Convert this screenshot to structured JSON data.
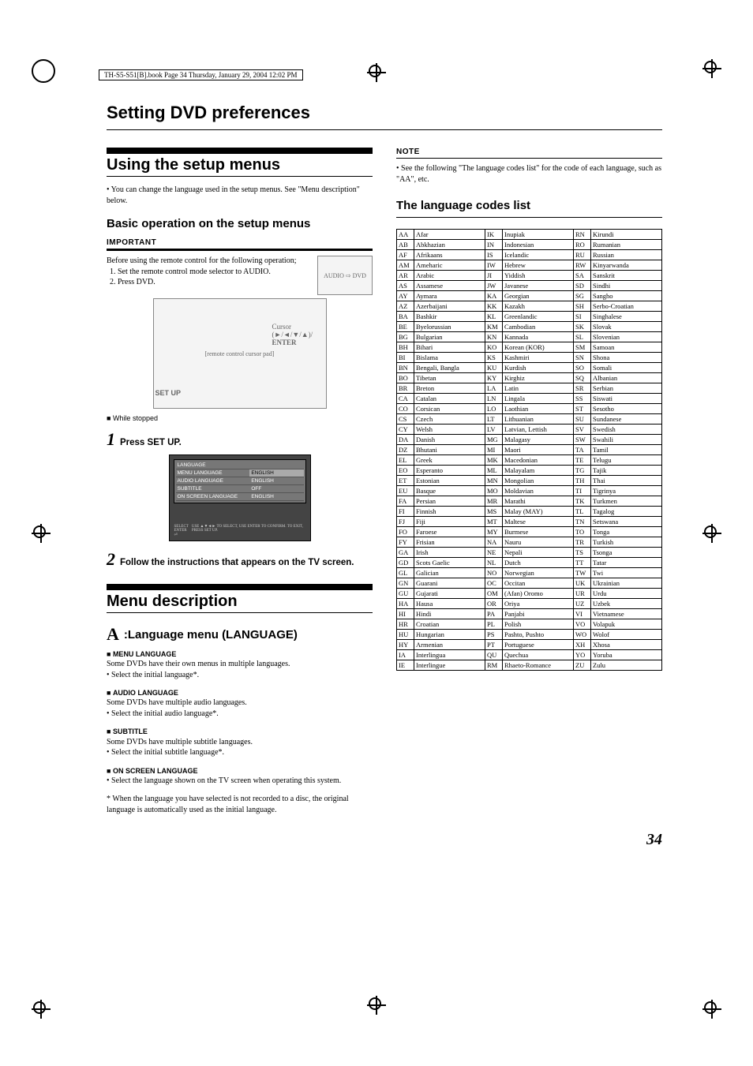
{
  "meta": {
    "header": "TH-S5-S51[B].book  Page 34  Thursday, January 29, 2004  12:02 PM"
  },
  "title": "Setting DVD preferences",
  "sec1": {
    "heading": "Using the setup menus",
    "bullet": "You can change the language used in the setup menus. See \"Menu description\" below.",
    "sub": "Basic operation on the setup menus",
    "important": "IMPORTANT",
    "intro": "Before using the remote control for the following operation;",
    "steps_pre": [
      "Set the remote control mode selector to AUDIO.",
      "Press DVD."
    ],
    "cursor_label": "Cursor\n(►/◄/▼/▲)/\nENTER",
    "setup_label": "SET UP",
    "while_stopped": "While stopped",
    "step1": "Press SET UP.",
    "step2": "Follow the instructions that appears on the TV screen.",
    "tv": {
      "title": "LANGUAGE",
      "rows": [
        [
          "MENU LANGUAGE",
          "ENGLISH"
        ],
        [
          "AUDIO LANGUAGE",
          "ENGLISH"
        ],
        [
          "SUBTITLE",
          "OFF"
        ],
        [
          "ON SCREEN LANGUAGE",
          "ENGLISH"
        ]
      ],
      "foot": "USE ▲▼◄► TO SELECT, USE ENTER TO CONFIRM. TO EXIT, PRESS SET UP."
    }
  },
  "sec2": {
    "heading": "Menu description",
    "lang_heading": ":Language menu (LANGUAGE)",
    "menu_lang": {
      "h": "MENU LANGUAGE",
      "p": "Some DVDs have their own menus in multiple languages.",
      "b": "Select the initial language*."
    },
    "audio_lang": {
      "h": "AUDIO LANGUAGE",
      "p": "Some DVDs have multiple audio languages.",
      "b": "Select the initial audio language*."
    },
    "subtitle": {
      "h": "SUBTITLE",
      "p": "Some DVDs have multiple subtitle languages.",
      "b": "Select the initial subtitle language*."
    },
    "onscreen": {
      "h": "ON SCREEN LANGUAGE",
      "b": "Select the language shown on the TV screen when operating this system."
    },
    "footnote": "* When the language you have selected is not recorded to a disc, the original language is automatically used as the initial language."
  },
  "note": {
    "h": "NOTE",
    "p": "See the following \"The language codes list\" for the code of each language, such as \"AA\", etc."
  },
  "lang_list": {
    "heading": "The language codes list",
    "cols": [
      [
        [
          "AA",
          "Afar"
        ],
        [
          "AB",
          "Abkhazian"
        ],
        [
          "AF",
          "Afrikaans"
        ],
        [
          "AM",
          "Ameharic"
        ],
        [
          "AR",
          "Arabic"
        ],
        [
          "AS",
          "Assamese"
        ],
        [
          "AY",
          "Aymara"
        ],
        [
          "AZ",
          "Azerbaijani"
        ],
        [
          "BA",
          "Bashkir"
        ],
        [
          "BE",
          "Byelorussian"
        ],
        [
          "BG",
          "Bulgarian"
        ],
        [
          "BH",
          "Bihari"
        ],
        [
          "BI",
          "Bislama"
        ],
        [
          "BN",
          "Bengali, Bangla"
        ],
        [
          "BO",
          "Tibetan"
        ],
        [
          "BR",
          "Breton"
        ],
        [
          "CA",
          "Catalan"
        ],
        [
          "CO",
          "Corsican"
        ],
        [
          "CS",
          "Czech"
        ],
        [
          "CY",
          "Welsh"
        ],
        [
          "DA",
          "Danish"
        ],
        [
          "DZ",
          "Bhutani"
        ],
        [
          "EL",
          "Greek"
        ],
        [
          "EO",
          "Esperanto"
        ],
        [
          "ET",
          "Estonian"
        ],
        [
          "EU",
          "Basque"
        ],
        [
          "FA",
          "Persian"
        ],
        [
          "FI",
          "Finnish"
        ],
        [
          "FJ",
          "Fiji"
        ],
        [
          "FO",
          "Faroese"
        ],
        [
          "FY",
          "Frisian"
        ],
        [
          "GA",
          "Irish"
        ],
        [
          "GD",
          "Scots Gaelic"
        ],
        [
          "GL",
          "Galician"
        ],
        [
          "GN",
          "Guarani"
        ],
        [
          "GU",
          "Gujarati"
        ],
        [
          "HA",
          "Hausa"
        ],
        [
          "HI",
          "Hindi"
        ],
        [
          "HR",
          "Croatian"
        ],
        [
          "HU",
          "Hungarian"
        ],
        [
          "HY",
          "Armenian"
        ],
        [
          "IA",
          "Interlingua"
        ],
        [
          "IE",
          "Interlingue"
        ]
      ],
      [
        [
          "IK",
          "Inupiak"
        ],
        [
          "IN",
          "Indonesian"
        ],
        [
          "IS",
          "Icelandic"
        ],
        [
          "IW",
          "Hebrew"
        ],
        [
          "JI",
          "Yiddish"
        ],
        [
          "JW",
          "Javanese"
        ],
        [
          "KA",
          "Georgian"
        ],
        [
          "KK",
          "Kazakh"
        ],
        [
          "KL",
          "Greenlandic"
        ],
        [
          "KM",
          "Cambodian"
        ],
        [
          "KN",
          "Kannada"
        ],
        [
          "KO",
          "Korean (KOR)"
        ],
        [
          "KS",
          "Kashmiri"
        ],
        [
          "KU",
          "Kurdish"
        ],
        [
          "KY",
          "Kirghiz"
        ],
        [
          "LA",
          "Latin"
        ],
        [
          "LN",
          "Lingala"
        ],
        [
          "LO",
          "Laothian"
        ],
        [
          "LT",
          "Lithuanian"
        ],
        [
          "LV",
          "Latvian, Lettish"
        ],
        [
          "MG",
          "Malagasy"
        ],
        [
          "MI",
          "Maori"
        ],
        [
          "MK",
          "Macedonian"
        ],
        [
          "ML",
          "Malayalam"
        ],
        [
          "MN",
          "Mongolian"
        ],
        [
          "MO",
          "Moldavian"
        ],
        [
          "MR",
          "Marathi"
        ],
        [
          "MS",
          "Malay (MAY)"
        ],
        [
          "MT",
          "Maltese"
        ],
        [
          "MY",
          "Burmese"
        ],
        [
          "NA",
          "Nauru"
        ],
        [
          "NE",
          "Nepali"
        ],
        [
          "NL",
          "Dutch"
        ],
        [
          "NO",
          "Norwegian"
        ],
        [
          "OC",
          "Occitan"
        ],
        [
          "OM",
          "(Afan) Oromo"
        ],
        [
          "OR",
          "Oriya"
        ],
        [
          "PA",
          "Panjabi"
        ],
        [
          "PL",
          "Polish"
        ],
        [
          "PS",
          "Pashto, Pushto"
        ],
        [
          "PT",
          "Portuguese"
        ],
        [
          "QU",
          "Quechua"
        ],
        [
          "RM",
          "Rhaeto-Romance"
        ]
      ],
      [
        [
          "RN",
          "Kirundi"
        ],
        [
          "RO",
          "Rumanian"
        ],
        [
          "RU",
          "Russian"
        ],
        [
          "RW",
          "Kinyarwanda"
        ],
        [
          "SA",
          "Sanskrit"
        ],
        [
          "SD",
          "Sindhi"
        ],
        [
          "SG",
          "Sangho"
        ],
        [
          "SH",
          "Serbo-Croatian"
        ],
        [
          "SI",
          "Singhalese"
        ],
        [
          "SK",
          "Slovak"
        ],
        [
          "SL",
          "Slovenian"
        ],
        [
          "SM",
          "Samoan"
        ],
        [
          "SN",
          "Shona"
        ],
        [
          "SO",
          "Somali"
        ],
        [
          "SQ",
          "Albanian"
        ],
        [
          "SR",
          "Serbian"
        ],
        [
          "SS",
          "Siswati"
        ],
        [
          "ST",
          "Sesotho"
        ],
        [
          "SU",
          "Sundanese"
        ],
        [
          "SV",
          "Swedish"
        ],
        [
          "SW",
          "Swahili"
        ],
        [
          "TA",
          "Tamil"
        ],
        [
          "TE",
          "Telugu"
        ],
        [
          "TG",
          "Tajik"
        ],
        [
          "TH",
          "Thai"
        ],
        [
          "TI",
          "Tigrinya"
        ],
        [
          "TK",
          "Turkmen"
        ],
        [
          "TL",
          "Tagalog"
        ],
        [
          "TN",
          "Setswana"
        ],
        [
          "TO",
          "Tonga"
        ],
        [
          "TR",
          "Turkish"
        ],
        [
          "TS",
          "Tsonga"
        ],
        [
          "TT",
          "Tatar"
        ],
        [
          "TW",
          "Twi"
        ],
        [
          "UK",
          "Ukrainian"
        ],
        [
          "UR",
          "Urdu"
        ],
        [
          "UZ",
          "Uzbek"
        ],
        [
          "VI",
          "Vietnamese"
        ],
        [
          "VO",
          "Volapuk"
        ],
        [
          "WO",
          "Wolof"
        ],
        [
          "XH",
          "Xhosa"
        ],
        [
          "YO",
          "Yoruba"
        ],
        [
          "ZU",
          "Zulu"
        ]
      ]
    ]
  },
  "page_number": "34"
}
